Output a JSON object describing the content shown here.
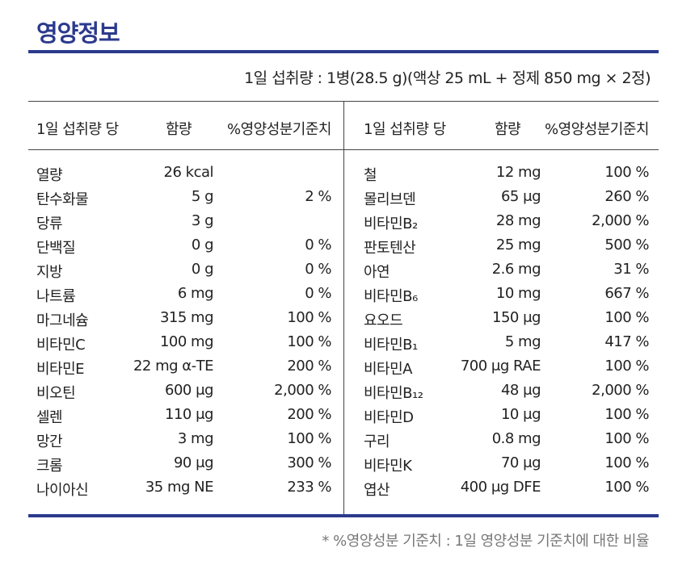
{
  "title": "영양정보",
  "serving": "1일 섭취량 : 1병(28.5 g)(액상 25 mL + 정제 850 mg × 2정)",
  "headers": {
    "left": [
      "1일 섭취량 당",
      "함량",
      "%영양성분기준치"
    ],
    "right": [
      "1일 섭취량 당",
      "함량",
      "%영양성분기준치"
    ]
  },
  "left_rows": [
    {
      "name": "열량",
      "amount": "26 kcal",
      "percent": ""
    },
    {
      "name": "탄수화물",
      "amount": "5 g",
      "percent": "2 %"
    },
    {
      "name": "당류",
      "amount": "3 g",
      "percent": ""
    },
    {
      "name": "단백질",
      "amount": "0 g",
      "percent": "0 %"
    },
    {
      "name": "지방",
      "amount": "0 g",
      "percent": "0 %"
    },
    {
      "name": "나트륨",
      "amount": "6 mg",
      "percent": "0 %"
    },
    {
      "name": "마그네슘",
      "amount": "315 mg",
      "percent": "100 %"
    },
    {
      "name": "비타민C",
      "amount": "100 mg",
      "percent": "100 %"
    },
    {
      "name": "비타민E",
      "amount": "22 mg α-TE",
      "percent": "200 %"
    },
    {
      "name": "비오틴",
      "amount": "600 μg",
      "percent": "2,000 %"
    },
    {
      "name": "셀렌",
      "amount": "110 μg",
      "percent": "200 %"
    },
    {
      "name": "망간",
      "amount": "3 mg",
      "percent": "100 %"
    },
    {
      "name": "크롬",
      "amount": "90 μg",
      "percent": "300 %"
    },
    {
      "name": "나이아신",
      "amount": "35 mg NE",
      "percent": "233 %"
    }
  ],
  "right_rows": [
    {
      "name": "철",
      "amount": "12 mg",
      "percent": "100 %"
    },
    {
      "name": "몰리브덴",
      "amount": "65 μg",
      "percent": "260 %"
    },
    {
      "name": "비타민B₂",
      "amount": "28 mg",
      "percent": "2,000 %"
    },
    {
      "name": "판토텐산",
      "amount": "25 mg",
      "percent": "500 %"
    },
    {
      "name": "아연",
      "amount": "2.6 mg",
      "percent": "31 %"
    },
    {
      "name": "비타민B₆",
      "amount": "10 mg",
      "percent": "667 %"
    },
    {
      "name": "요오드",
      "amount": "150 μg",
      "percent": "100 %"
    },
    {
      "name": "비타민B₁",
      "amount": "5 mg",
      "percent": "417 %"
    },
    {
      "name": "비타민A",
      "amount": "700 μg RAE",
      "percent": "100 %"
    },
    {
      "name": "비타민B₁₂",
      "amount": "48 μg",
      "percent": "2,000 %"
    },
    {
      "name": "비타민D",
      "amount": "10 μg",
      "percent": "100 %"
    },
    {
      "name": "구리",
      "amount": "0.8 mg",
      "percent": "100 %"
    },
    {
      "name": "비타민K",
      "amount": "70 μg",
      "percent": "100 %"
    },
    {
      "name": "엽산",
      "amount": "400 μg DFE",
      "percent": "100 %"
    }
  ],
  "footnote": "* %영양성분 기준치 : 1일 영양성분 기준치에 대한 비율",
  "colors": {
    "accent": "#2c3a8c",
    "text": "#222222",
    "muted": "#777777"
  }
}
